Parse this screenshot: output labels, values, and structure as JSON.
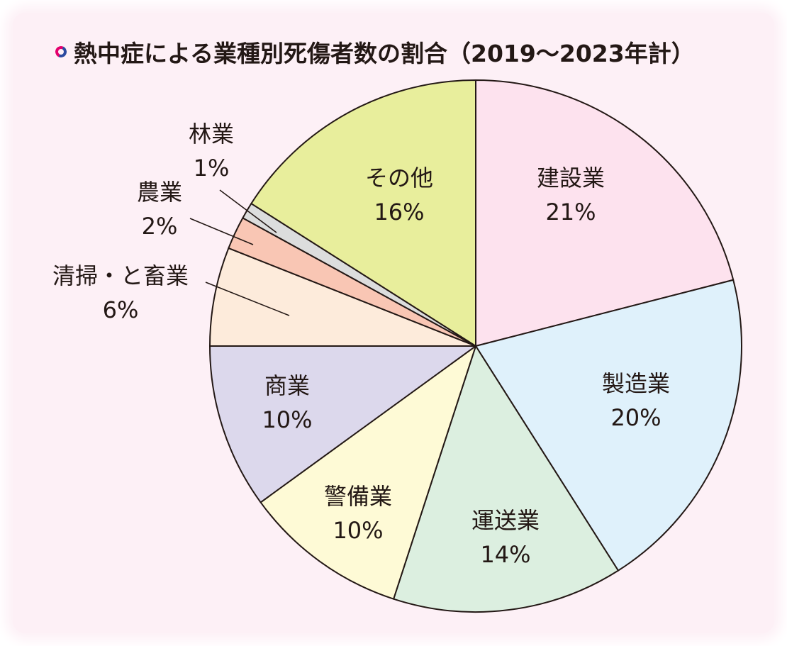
{
  "title": "熱中症による業種別死傷者数の割合（2019～2023年計）",
  "colors": {
    "background": "#fdf0f6",
    "outline": "#231815",
    "title_icon_primary": "#e4006e",
    "title_icon_secondary": "#2b4aa0"
  },
  "chart_data": {
    "type": "pie",
    "title": "熱中症による業種別死傷者数の割合（2019～2023年計）",
    "start_angle_deg": 0,
    "direction": "clockwise",
    "unit": "%",
    "slices": [
      {
        "name": "建設業",
        "value": 21,
        "value_label": "21%",
        "color": "#fde2ee"
      },
      {
        "name": "製造業",
        "value": 20,
        "value_label": "20%",
        "color": "#dff1fb"
      },
      {
        "name": "運送業",
        "value": 14,
        "value_label": "14%",
        "color": "#dcefe0"
      },
      {
        "name": "警備業",
        "value": 10,
        "value_label": "10%",
        "color": "#fefad6"
      },
      {
        "name": "商業",
        "value": 10,
        "value_label": "10%",
        "color": "#dcd8ec"
      },
      {
        "name": "清掃・と畜業",
        "value": 6,
        "value_label": "6%",
        "color": "#fdebdb"
      },
      {
        "name": "農業",
        "value": 2,
        "value_label": "2%",
        "color": "#f9c6b4"
      },
      {
        "name": "林業",
        "value": 1,
        "value_label": "1%",
        "color": "#dcdddd"
      },
      {
        "name": "その他",
        "value": 16,
        "value_label": "16%",
        "color": "#e8ee9c"
      }
    ]
  }
}
